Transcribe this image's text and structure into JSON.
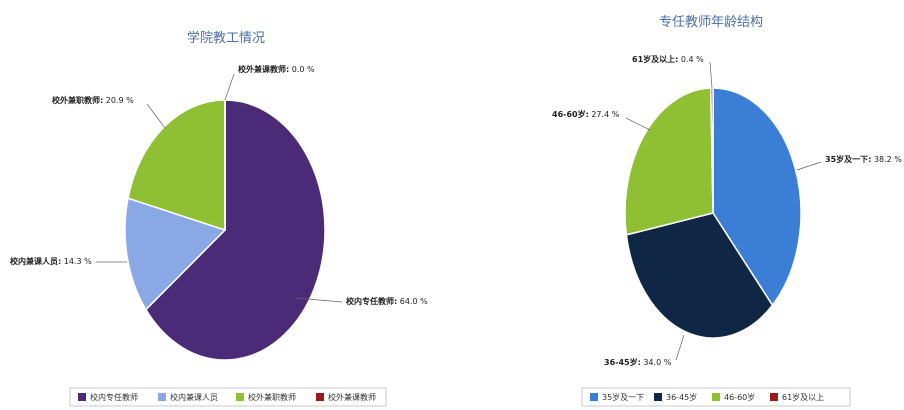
{
  "chart_data": [
    {
      "type": "pie",
      "title": "学院教工情况",
      "slices": [
        {
          "name": "校内专任教师",
          "value": 64.0,
          "label": "64.0 %",
          "color": "#4b2a78"
        },
        {
          "name": "校内兼课人员",
          "value": 14.3,
          "label": "14.3 %",
          "color": "#8aa8e6"
        },
        {
          "name": "校外兼职教师",
          "value": 20.9,
          "label": "20.9 %",
          "color": "#8fbf32"
        },
        {
          "name": "校外兼课教师",
          "value": 0.0,
          "label": "0.0 %",
          "color": "#9b1b1b"
        }
      ],
      "legend": {
        "position": "bottom",
        "entries": [
          "校内专任教师",
          "校内兼课人员",
          "校外兼职教师",
          "校外兼课教师"
        ]
      }
    },
    {
      "type": "pie",
      "title": "专任教师年龄结构",
      "slices": [
        {
          "name": "35岁及一下",
          "value": 38.2,
          "label": "38.2 %",
          "color": "#3a7fd5"
        },
        {
          "name": "36-45岁",
          "value": 34.0,
          "label": "34.0 %",
          "color": "#0f2744"
        },
        {
          "name": "46-60岁",
          "value": 27.4,
          "label": "27.4 %",
          "color": "#8fbf32"
        },
        {
          "name": "61岁及以上",
          "value": 0.4,
          "label": "0.4 %",
          "color": "#9b1b1b"
        }
      ],
      "legend": {
        "position": "bottom",
        "entries": [
          "35岁及一下",
          "36-45岁",
          "46-60岁",
          "61岁及以上"
        ]
      }
    }
  ]
}
